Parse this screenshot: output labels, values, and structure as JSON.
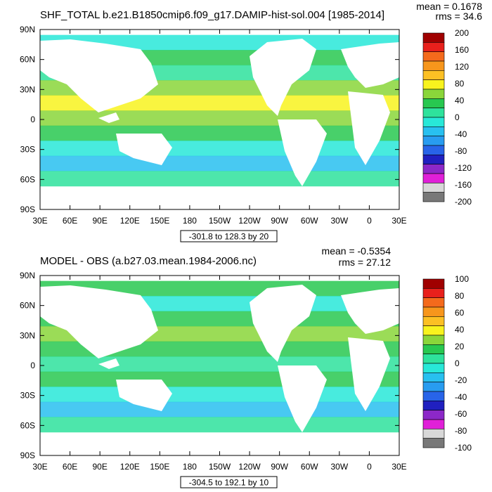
{
  "chart_data": [
    {
      "type": "heatmap",
      "title": "SHF_TOTAL b.e21.B1850cmip6.f09_g17.DAMIP-hist-sol.004 [1985-2014]",
      "mean": "mean = 0.1678",
      "rms": "rms = 34.6",
      "range_label": "-301.8 to 128.3 by 20",
      "x_ticks": [
        "30E",
        "60E",
        "90E",
        "120E",
        "150E",
        "180",
        "150W",
        "120W",
        "90W",
        "60W",
        "30W",
        "0",
        "30E"
      ],
      "y_ticks": [
        "90N",
        "60N",
        "30N",
        "0",
        "30S",
        "60S",
        "90S"
      ],
      "colorbar": {
        "labels": [
          "200",
          "160",
          "120",
          "80",
          "40",
          "0",
          "-40",
          "-80",
          "-120",
          "-160",
          "-200"
        ],
        "colors": [
          "#a00000",
          "#e8201c",
          "#f46a1c",
          "#f7961c",
          "#fcc024",
          "#f8f31e",
          "#8ad63a",
          "#28c850",
          "#2ee29c",
          "#28e8d8",
          "#28c0f0",
          "#289cf0",
          "#2864e8",
          "#2020c0",
          "#8c28c8",
          "#e020d8",
          "#d8d8d8",
          "#787878"
        ]
      }
    },
    {
      "type": "heatmap",
      "title": "MODEL - OBS (a.b27.03.mean.1984-2006.nc)",
      "mean": "mean = -0.5354",
      "rms": "rms = 27.12",
      "range_label": "-304.5 to 192.1 by 10",
      "x_ticks": [
        "30E",
        "60E",
        "90E",
        "120E",
        "150E",
        "180",
        "150W",
        "120W",
        "90W",
        "60W",
        "30W",
        "0",
        "30E"
      ],
      "y_ticks": [
        "90N",
        "60N",
        "30N",
        "0",
        "30S",
        "60S",
        "90S"
      ],
      "colorbar": {
        "labels": [
          "100",
          "80",
          "60",
          "40",
          "20",
          "0",
          "-20",
          "-40",
          "-60",
          "-80",
          "-100"
        ],
        "colors": [
          "#a00000",
          "#e8201c",
          "#f46a1c",
          "#f7961c",
          "#fcc024",
          "#f8f31e",
          "#8ad63a",
          "#28c850",
          "#2ee29c",
          "#28e8d8",
          "#28c0f0",
          "#289cf0",
          "#2864e8",
          "#2020c0",
          "#8c28c8",
          "#e020d8",
          "#d8d8d8",
          "#787878"
        ]
      }
    }
  ]
}
